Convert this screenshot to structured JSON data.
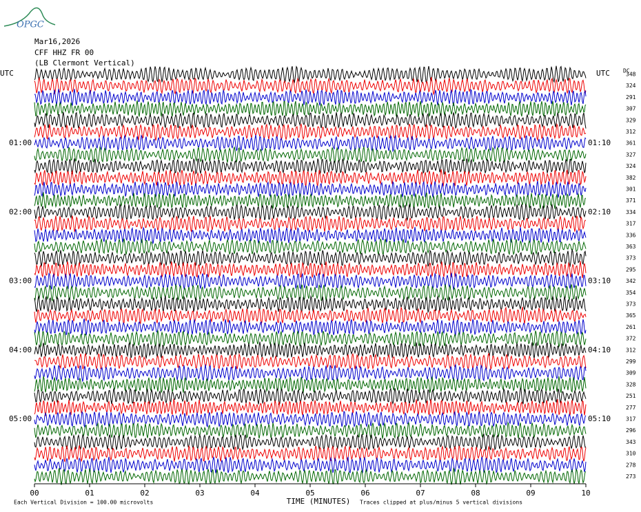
{
  "logo": "OPGC",
  "header": {
    "date": "Mar16,2026",
    "station": "CFF HHZ FR 00",
    "location": "(LB  Clermont Vertical)"
  },
  "left_axis": {
    "title": "UTC",
    "labels": [
      "01:00",
      "02:00",
      "03:00",
      "04:00",
      "05:00"
    ]
  },
  "right_axis": {
    "title": "UTC",
    "labels": [
      "01:10",
      "02:10",
      "03:10",
      "04:10",
      "05:10"
    ]
  },
  "dc": {
    "title": "DC",
    "values": [
      348,
      324,
      291,
      307,
      329,
      312,
      361,
      327,
      324,
      382,
      301,
      371,
      334,
      317,
      336,
      363,
      373,
      295,
      342,
      354,
      373,
      365,
      261,
      372,
      312,
      299,
      309,
      328,
      251,
      277,
      317,
      296,
      343,
      310,
      278,
      273
    ]
  },
  "x_axis": {
    "ticks": [
      "00",
      "01",
      "02",
      "03",
      "04",
      "05",
      "06",
      "07",
      "08",
      "09",
      "10"
    ],
    "title": "TIME (MINUTES)"
  },
  "footer": {
    "scale_note": "Each Vertical Division =  100.00 microvolts",
    "clip_note": "Traces clipped at plus/minus 5 vertical divisions"
  }
}
